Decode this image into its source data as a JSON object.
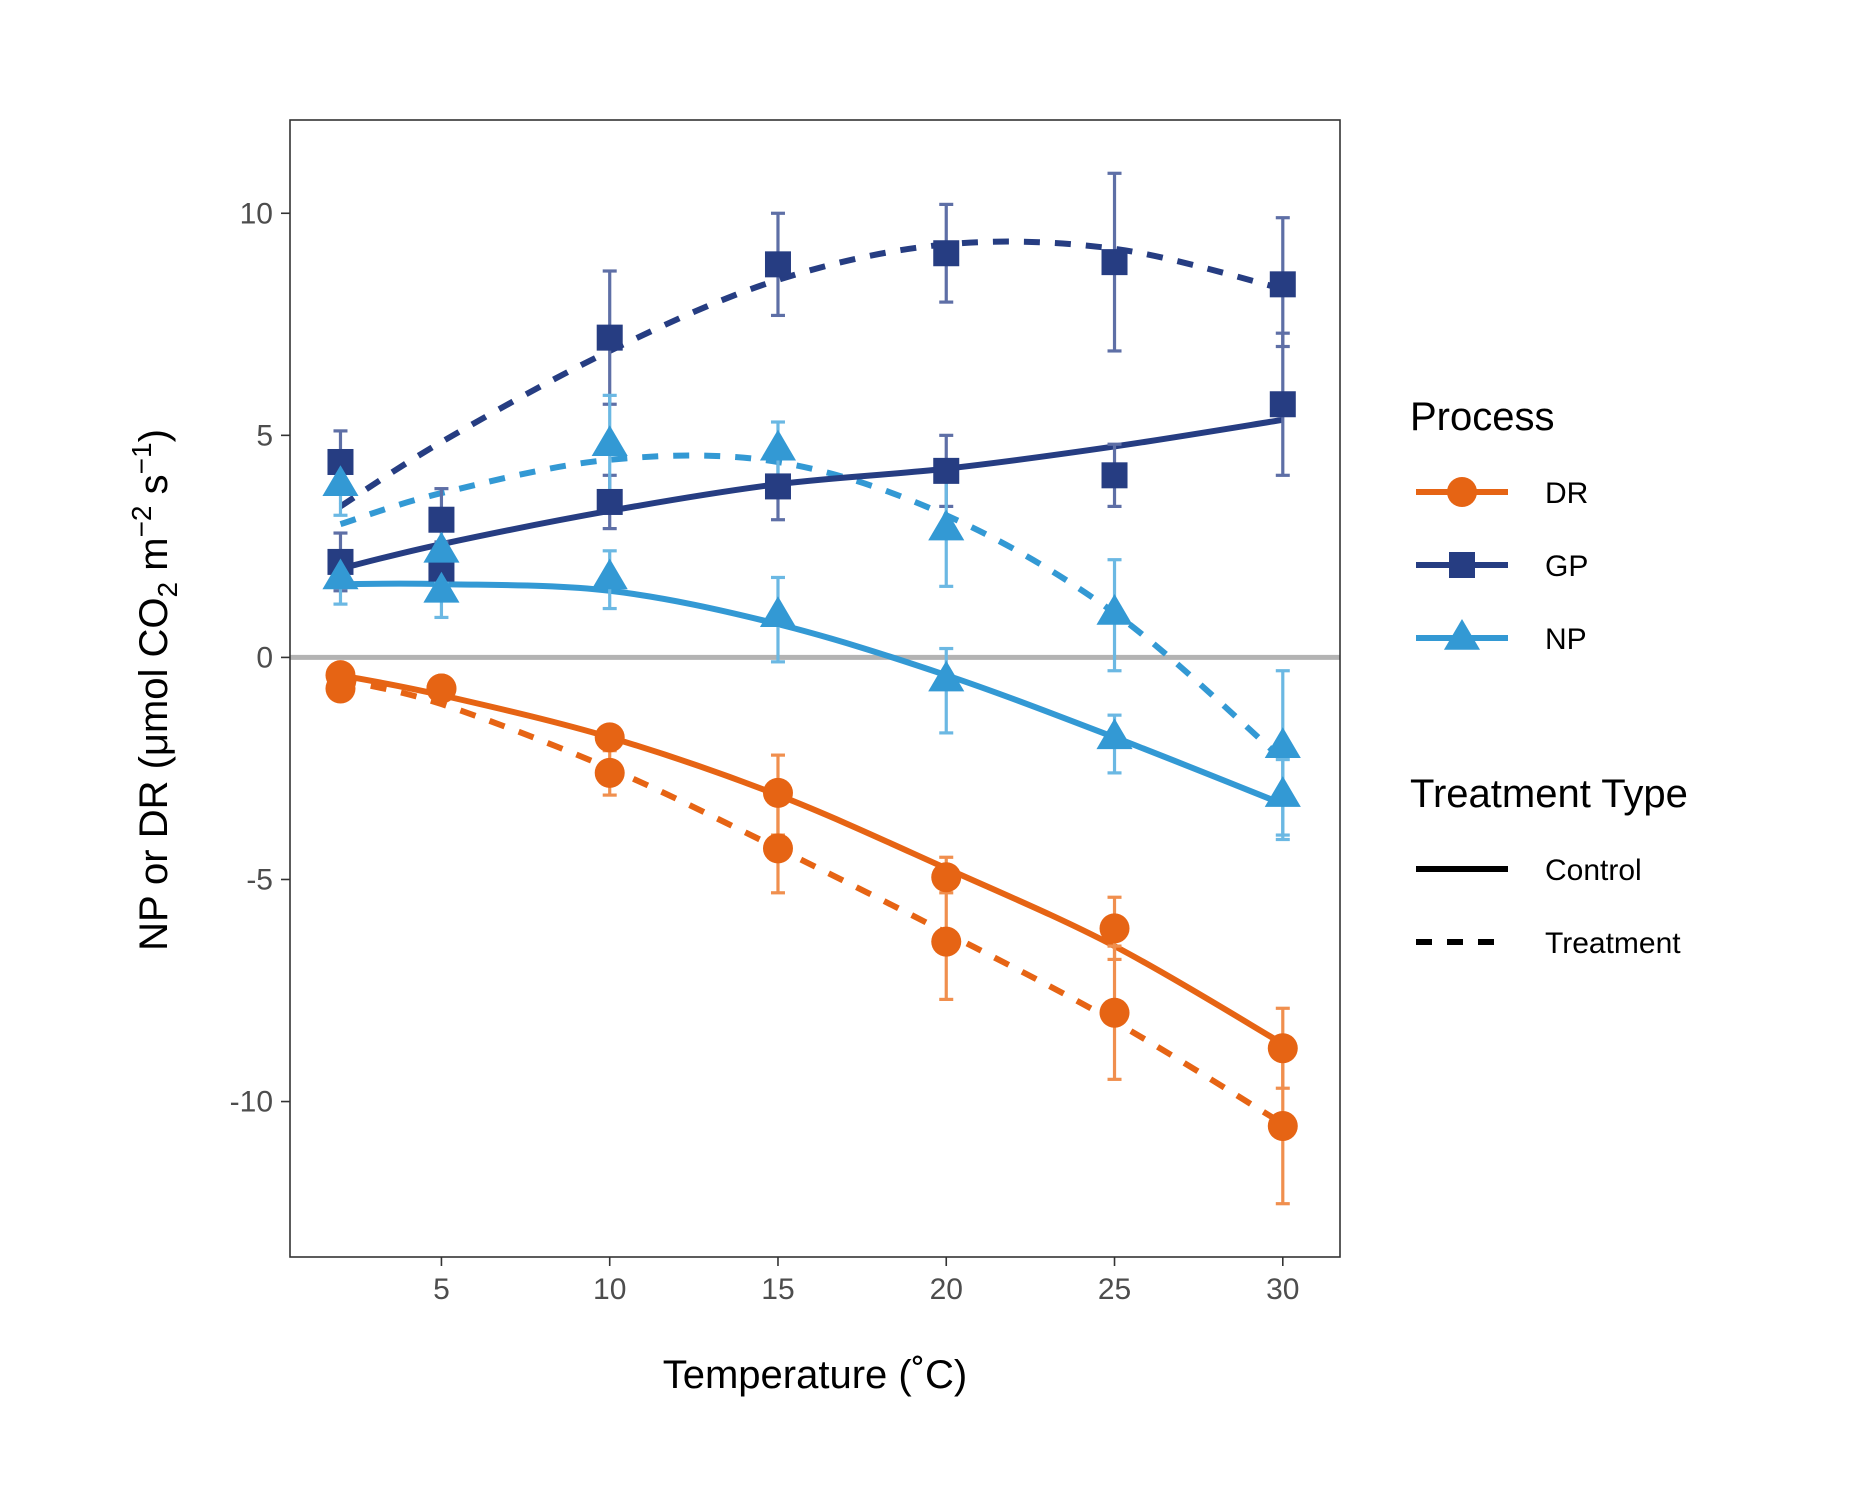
{
  "chart_data": {
    "type": "line",
    "xlabel": "Temperature (˚C)",
    "ylabel": {
      "prefix": "NP or DR (",
      "mu": "μ",
      "unit_a": "mol CO",
      "sub2": "2",
      "unit_b": " m",
      "sup_m": "−2",
      "unit_c": " s",
      "sup_s": "−1",
      "suffix": ")"
    },
    "xlim": [
      0.5,
      31.7
    ],
    "ylim": [
      -13.5,
      12.1
    ],
    "xticks": [
      5,
      10,
      15,
      20,
      25,
      30
    ],
    "yticks": [
      10,
      5,
      0,
      -5,
      -10
    ],
    "ytick_labels": [
      "10",
      "5",
      "0",
      "-5",
      "-10"
    ],
    "reference_line": {
      "y": 0,
      "color": "#b3b3b3"
    },
    "grid": false,
    "x": [
      2,
      5,
      10,
      15,
      20,
      25,
      30
    ],
    "legend": {
      "position": "right",
      "process_title": "Process",
      "process_items": [
        {
          "label": "DR",
          "series": "DR",
          "color": "#E66414",
          "shape": "circle"
        },
        {
          "label": "GP",
          "series": "GP",
          "color": "#263D82",
          "shape": "square"
        },
        {
          "label": "NP",
          "series": "NP",
          "color": "#3399D4",
          "shape": "triangle"
        }
      ],
      "treatment_title": "Treatment Type",
      "treatment_items": [
        {
          "label": "Control",
          "dash": "solid"
        },
        {
          "label": "Treatment",
          "dash": "dashed"
        }
      ]
    },
    "series": [
      {
        "process": "GP",
        "treatment": "Treatment",
        "color": "#263D82",
        "errcolor": "#5E6FA6",
        "shape": "square",
        "dash": "dashed",
        "values": [
          4.4,
          3.1,
          7.2,
          8.85,
          9.1,
          8.9,
          8.4
        ],
        "err_low": [
          3.7,
          2.4,
          5.7,
          7.7,
          8.0,
          6.9,
          7.0
        ],
        "err_high": [
          5.1,
          3.8,
          8.7,
          10.0,
          10.2,
          10.9,
          9.9
        ],
        "fit": [
          3.4,
          4.85,
          6.9,
          8.5,
          9.3,
          9.2,
          8.3
        ]
      },
      {
        "process": "GP",
        "treatment": "Control",
        "color": "#263D82",
        "errcolor": "#5E6FA6",
        "shape": "square",
        "dash": "solid",
        "values": [
          2.15,
          2.0,
          3.5,
          3.85,
          4.2,
          4.1,
          5.7
        ],
        "err_low": [
          1.5,
          1.4,
          2.9,
          3.1,
          3.4,
          3.4,
          4.1
        ],
        "err_high": [
          2.8,
          2.6,
          4.1,
          4.6,
          5.0,
          4.8,
          7.3
        ],
        "fit": [
          2.0,
          2.55,
          3.3,
          3.9,
          4.25,
          4.75,
          5.35
        ]
      },
      {
        "process": "NP",
        "treatment": "Treatment",
        "color": "#3399D4",
        "errcolor": "#6BB8E3",
        "shape": "triangle",
        "dash": "dashed",
        "values": [
          3.9,
          2.4,
          4.8,
          4.7,
          2.9,
          1.0,
          -2.0
        ],
        "err_low": [
          3.2,
          1.7,
          3.7,
          4.0,
          1.6,
          -0.3,
          -4.0
        ],
        "err_high": [
          4.6,
          3.1,
          5.9,
          5.3,
          4.1,
          2.2,
          -0.3
        ],
        "fit": [
          3.0,
          3.7,
          4.45,
          4.4,
          3.2,
          1.0,
          -2.3
        ]
      },
      {
        "process": "NP",
        "treatment": "Control",
        "color": "#3399D4",
        "errcolor": "#6BB8E3",
        "shape": "triangle",
        "dash": "solid",
        "values": [
          1.8,
          1.5,
          1.8,
          0.95,
          -0.5,
          -1.8,
          -3.1
        ],
        "err_low": [
          1.2,
          0.9,
          1.1,
          -0.1,
          -1.7,
          -2.6,
          -4.1
        ],
        "err_high": [
          2.4,
          2.1,
          2.4,
          1.8,
          0.2,
          -1.3,
          -2.3
        ],
        "fit": [
          1.65,
          1.65,
          1.5,
          0.75,
          -0.4,
          -1.8,
          -3.3
        ]
      },
      {
        "process": "DR",
        "treatment": "Control",
        "color": "#E66414",
        "errcolor": "#F08F4E",
        "shape": "circle",
        "dash": "solid",
        "values": [
          -0.4,
          -0.7,
          -1.8,
          -3.05,
          -4.95,
          -6.1,
          -8.8
        ],
        "err_low": [
          -0.5,
          -0.8,
          -1.9,
          -4.0,
          -5.3,
          -6.8,
          -9.7
        ],
        "err_high": [
          -0.3,
          -0.6,
          -1.7,
          -2.2,
          -4.5,
          -5.4,
          -7.9
        ],
        "fit": [
          -0.4,
          -0.85,
          -1.8,
          -3.1,
          -4.75,
          -6.5,
          -8.7
        ]
      },
      {
        "process": "DR",
        "treatment": "Treatment",
        "color": "#E66414",
        "errcolor": "#F08F4E",
        "shape": "circle",
        "dash": "dashed",
        "values": [
          -0.7,
          -0.7,
          -2.6,
          -4.3,
          -6.4,
          -8.0,
          -10.55
        ],
        "err_low": [
          -0.8,
          -0.8,
          -3.1,
          -5.3,
          -7.7,
          -9.5,
          -12.3
        ],
        "err_high": [
          -0.6,
          -0.6,
          -2.1,
          -3.3,
          -5.1,
          -6.5,
          -8.8
        ],
        "fit": [
          -0.5,
          -1.05,
          -2.5,
          -4.3,
          -6.2,
          -8.2,
          -10.5
        ]
      }
    ]
  }
}
